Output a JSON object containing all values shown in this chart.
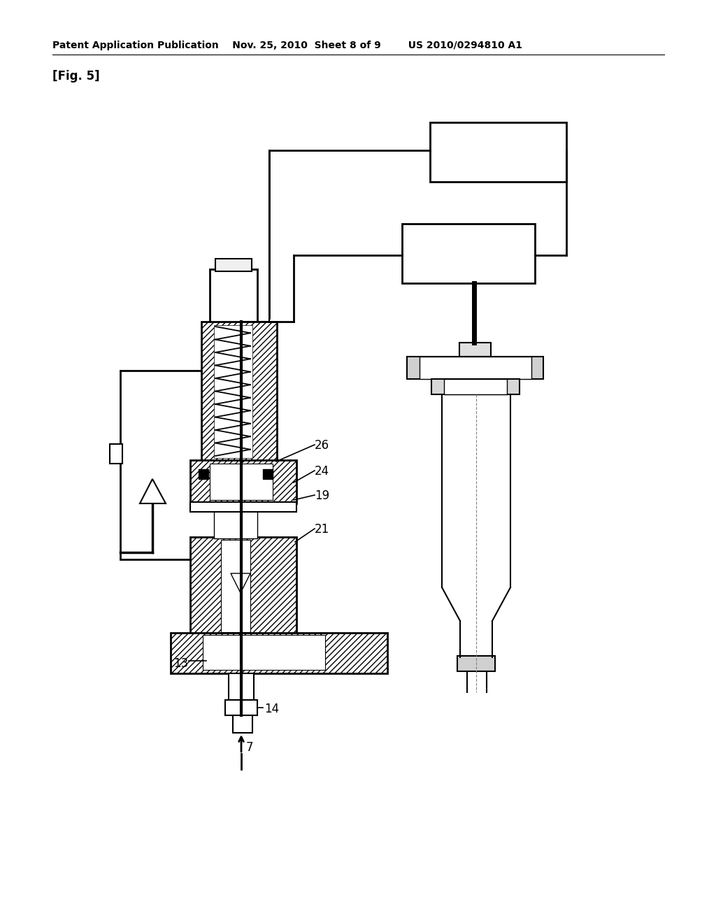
{
  "bg_color": "#ffffff",
  "header": "Patent Application Publication    Nov. 25, 2010  Sheet 8 of 9        US 2010/0294810 A1",
  "fig_label": "[Fig. 5]"
}
